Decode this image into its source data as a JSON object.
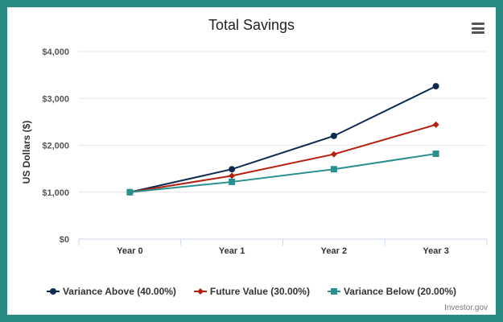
{
  "chart_data": {
    "type": "line",
    "title": "Total Savings",
    "ylabel": "US Dollars ($)",
    "xlabel": "",
    "categories": [
      "Year 0",
      "Year 1",
      "Year 2",
      "Year 3"
    ],
    "ylim": [
      0,
      4000
    ],
    "yticks": [
      0,
      1000,
      2000,
      3000,
      4000
    ],
    "ytick_labels": [
      "$0",
      "$1,000",
      "$2,000",
      "$3,000",
      "$4,000"
    ],
    "grid": true,
    "legend_position": "bottom",
    "series": [
      {
        "name": "Variance Above (40.00%)",
        "values": [
          1000,
          1490,
          2200,
          3260
        ],
        "color": "#0d2a52",
        "marker": "circle"
      },
      {
        "name": "Future Value (30.00%)",
        "values": [
          1000,
          1350,
          1810,
          2440
        ],
        "color": "#b5200f",
        "marker": "diamond"
      },
      {
        "name": "Variance Below (20.00%)",
        "values": [
          1000,
          1220,
          1490,
          1820
        ],
        "color": "#2a8f8f",
        "marker": "square"
      }
    ],
    "credit": "Investor.gov"
  },
  "menu_icon": "hamburger-menu-icon"
}
